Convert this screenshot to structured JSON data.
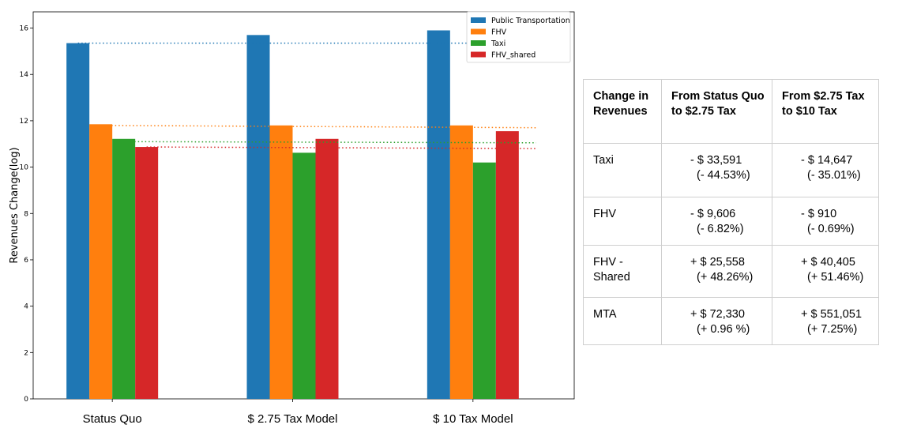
{
  "chart_data": {
    "type": "bar",
    "categories": [
      "Status Quo",
      "$ 2.75 Tax Model",
      "$ 10 Tax Model"
    ],
    "series": [
      {
        "name": "Public Transportation",
        "color": "#1f77b4",
        "values": [
          15.35,
          15.7,
          15.9
        ]
      },
      {
        "name": "FHV",
        "color": "#ff7f0e",
        "values": [
          11.85,
          11.8,
          11.8
        ]
      },
      {
        "name": "Taxi",
        "color": "#2ca02c",
        "values": [
          11.22,
          10.62,
          10.2
        ]
      },
      {
        "name": "FHV_shared",
        "color": "#d62728",
        "values": [
          10.87,
          11.22,
          11.55
        ]
      }
    ],
    "ylabel": "Revenues Change(log)",
    "ylim": [
      0,
      16.7
    ],
    "yticks": [
      "0",
      "2",
      "4",
      "6",
      "8",
      "10",
      "12",
      "14",
      "16"
    ],
    "grid": false,
    "legend": "top-right",
    "trend_lines": [
      {
        "series": "Public Transportation",
        "from": 15.35,
        "to": 15.35
      },
      {
        "series": "FHV",
        "from": 11.8,
        "to": 11.7
      },
      {
        "series": "Taxi",
        "from": 11.1,
        "to": 11.05
      },
      {
        "series": "FHV_shared",
        "from": 10.87,
        "to": 10.8
      }
    ]
  },
  "table": {
    "headers": [
      "Change in Revenues",
      "From Status Quo to $2.75 Tax",
      "From $2.75 Tax  to $10 Tax"
    ],
    "rows": [
      {
        "label": "Taxi",
        "c1": [
          "- $ 33,591",
          "(- 44.53%)"
        ],
        "c2": [
          "- $ 14,647",
          "(- 35.01%)"
        ]
      },
      {
        "label": "FHV",
        "c1": [
          "- $ 9,606",
          "(- 6.82%)"
        ],
        "c2": [
          "- $ 910",
          "(- 0.69%)"
        ]
      },
      {
        "label": "FHV - Shared",
        "c1": [
          "+ $ 25,558",
          "(+ 48.26%)"
        ],
        "c2": [
          "+ $ 40,405",
          "(+ 51.46%)"
        ]
      },
      {
        "label": "MTA",
        "c1": [
          "+ $ 72,330",
          "(+ 0.96 %)"
        ],
        "c2": [
          "+ $ 551,051",
          "(+ 7.25%)"
        ]
      }
    ]
  }
}
